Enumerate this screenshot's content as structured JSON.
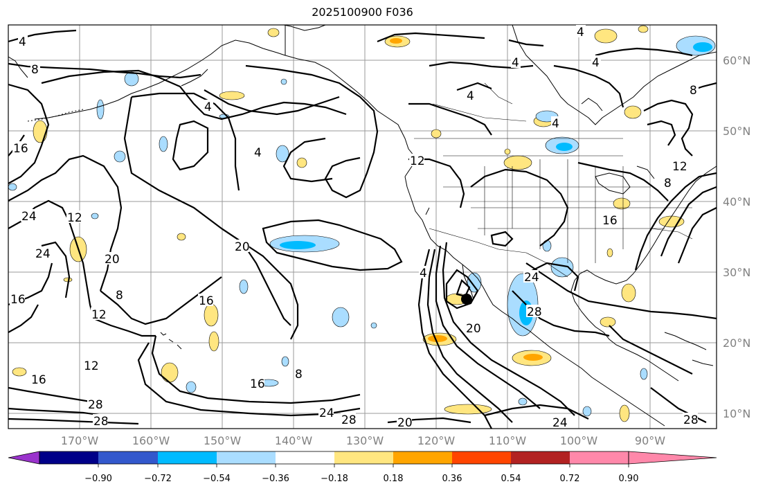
{
  "title": "2025100900 F036",
  "lat_labels": [
    "60°N",
    "50°N",
    "40°N",
    "30°N",
    "20°N",
    "10°N"
  ],
  "lon_labels": [
    "170°W",
    "160°W",
    "150°W",
    "140°W",
    "130°W",
    "120°W",
    "110°W",
    "100°W",
    "90°W"
  ],
  "colorbar": {
    "ticks": [
      "−0.90",
      "−0.72",
      "−0.54",
      "−0.36",
      "−0.18",
      "0.18",
      "0.36",
      "0.54",
      "0.72",
      "0.90"
    ],
    "colors": [
      "#9a33cc",
      "#000088",
      "#3358cc",
      "#00bbff",
      "#aaddff",
      "#ffffff",
      "#ffe680",
      "#ffa500",
      "#ff4500",
      "#b22222",
      "#ff88aa"
    ]
  },
  "contour_labels": [
    "4",
    "4",
    "8",
    "4",
    "4",
    "4",
    "4",
    "4",
    "8",
    "12",
    "24",
    "12",
    "20",
    "24",
    "20",
    "16",
    "12",
    "8",
    "16",
    "12",
    "16",
    "16",
    "28",
    "28",
    "16",
    "8",
    "24",
    "28",
    "20",
    "20",
    "24",
    "28",
    "4",
    "12",
    "16",
    "24",
    "28",
    "4",
    "8",
    "28"
  ],
  "fill_colors": {
    "pos_light": "#ffe680",
    "pos_mid": "#ffa500",
    "neg_light": "#aaddff",
    "neg_mid": "#00bbff"
  }
}
